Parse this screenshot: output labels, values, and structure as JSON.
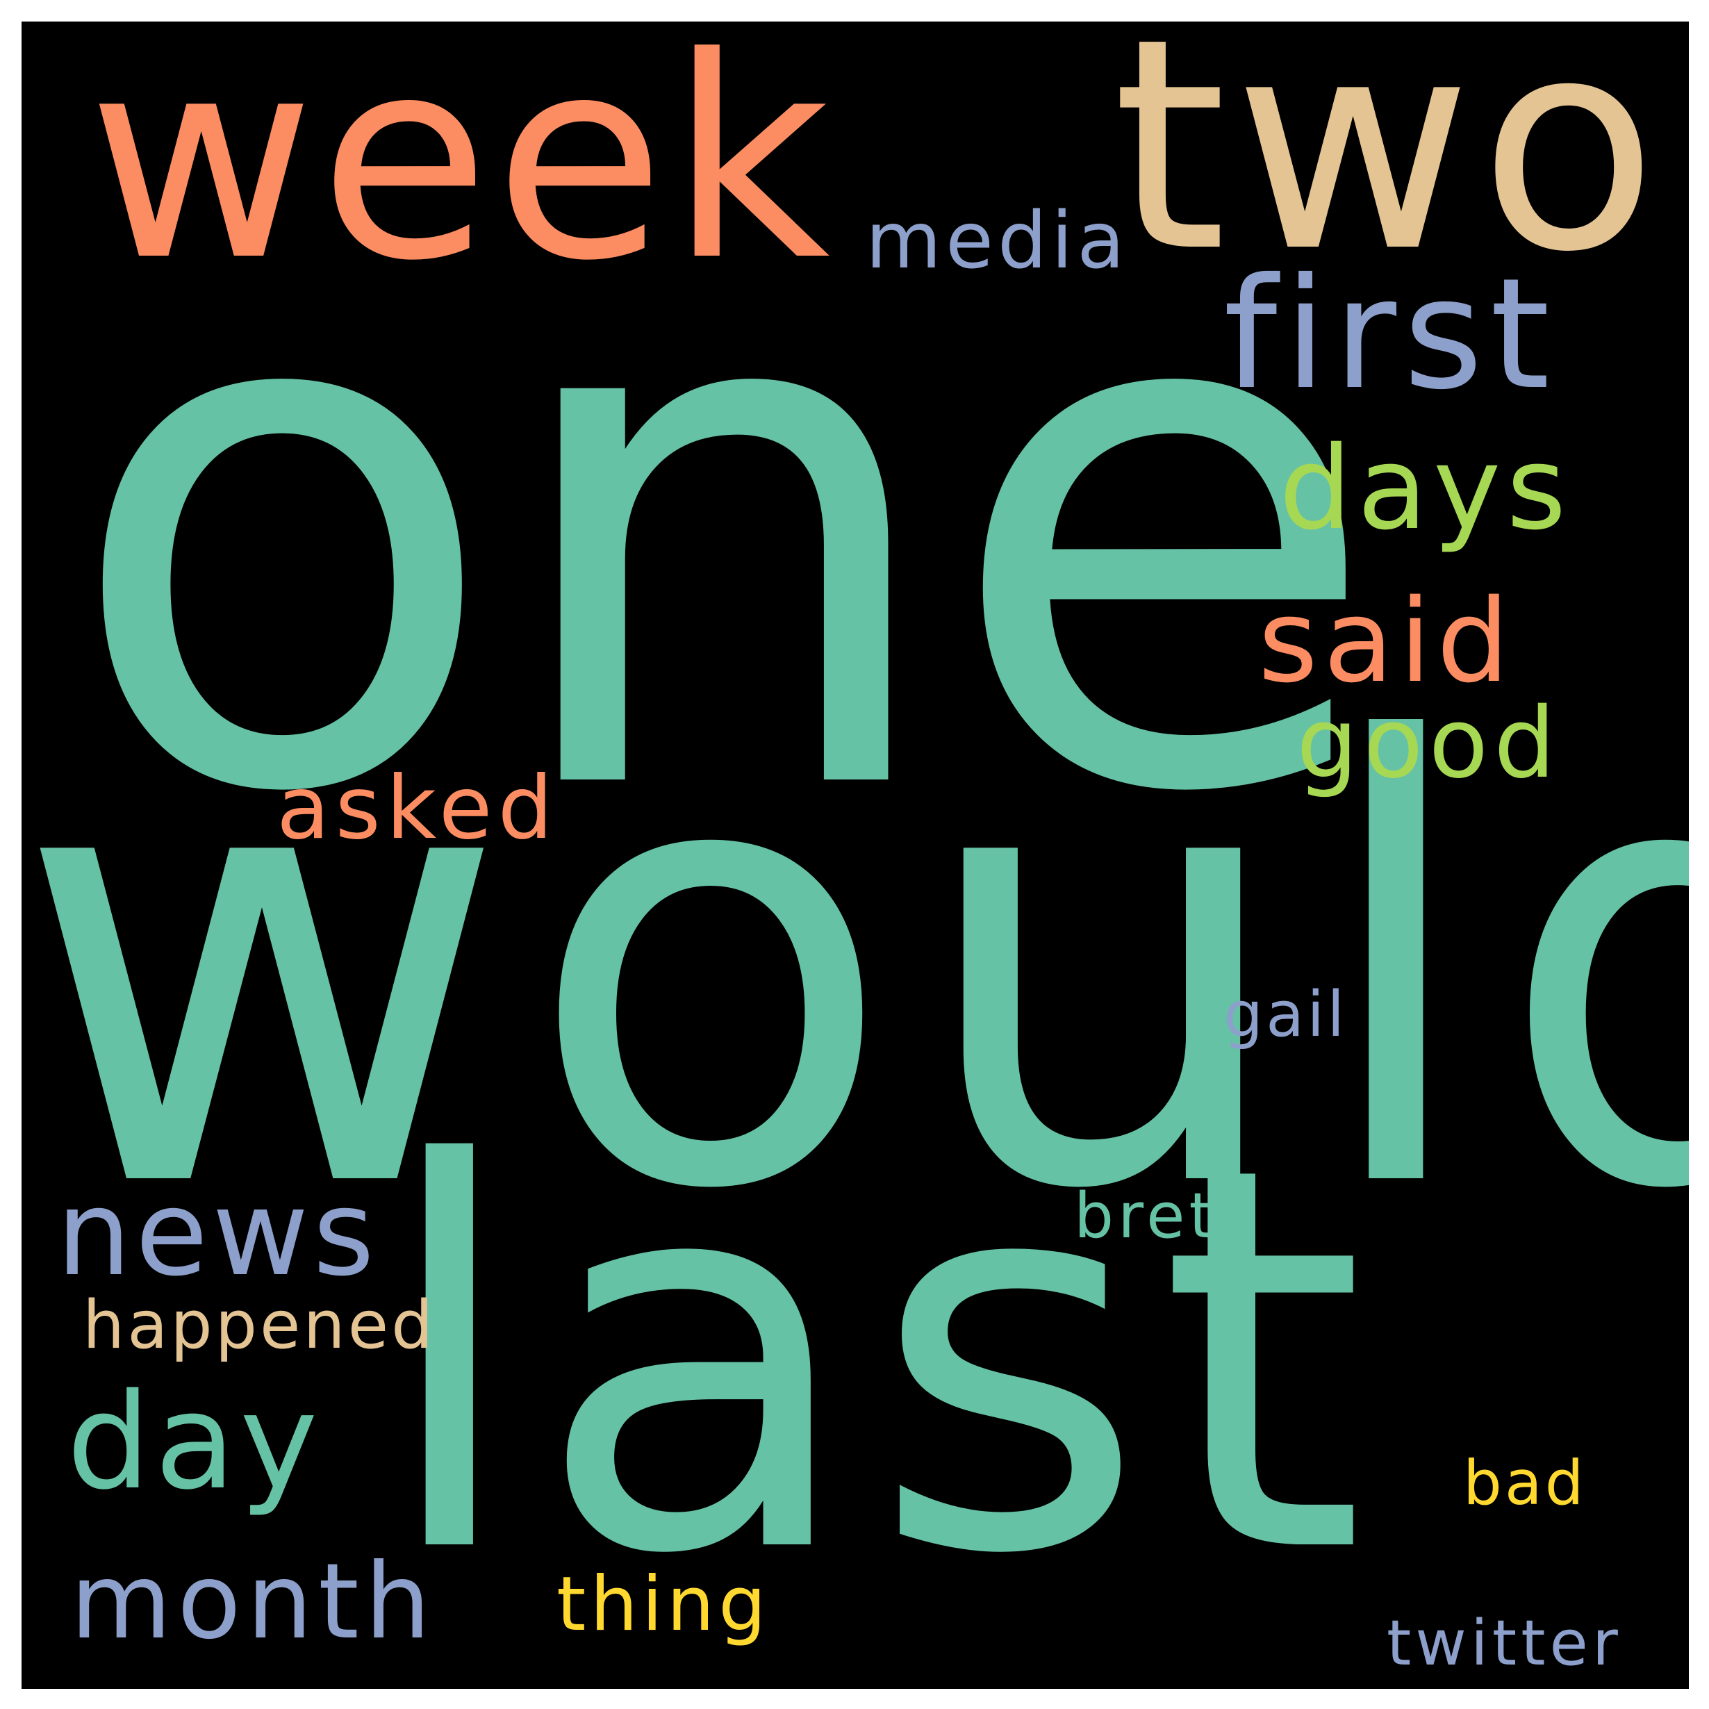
{
  "background_color": "#000000",
  "palette": {
    "teal": "#66c2a5",
    "orange": "#fc8d62",
    "lavender": "#8da0cb",
    "tan": "#e5c494",
    "lime": "#a6d854",
    "yellow": "#ffd92f"
  },
  "words": [
    {
      "id": "one",
      "text": "one",
      "color": "#66c2a5"
    },
    {
      "id": "would",
      "text": "would",
      "color": "#66c2a5"
    },
    {
      "id": "last",
      "text": "last",
      "color": "#66c2a5"
    },
    {
      "id": "two",
      "text": "two",
      "color": "#e5c494"
    },
    {
      "id": "week",
      "text": "week",
      "color": "#fc8d62"
    },
    {
      "id": "first",
      "text": "first",
      "color": "#8da0cb"
    },
    {
      "id": "media",
      "text": "media",
      "color": "#8da0cb"
    },
    {
      "id": "days",
      "text": "days",
      "color": "#a6d854"
    },
    {
      "id": "said",
      "text": "said",
      "color": "#fc8d62"
    },
    {
      "id": "good",
      "text": "good",
      "color": "#a6d854"
    },
    {
      "id": "asked",
      "text": "asked",
      "color": "#fc8d62"
    },
    {
      "id": "gail",
      "text": "gail",
      "color": "#8da0cb"
    },
    {
      "id": "news",
      "text": "news",
      "color": "#8da0cb"
    },
    {
      "id": "bret",
      "text": "bret",
      "color": "#66c2a5"
    },
    {
      "id": "happened",
      "text": "happened",
      "color": "#e5c494"
    },
    {
      "id": "day",
      "text": "day",
      "color": "#66c2a5"
    },
    {
      "id": "bad",
      "text": "bad",
      "color": "#ffd92f"
    },
    {
      "id": "month",
      "text": "month",
      "color": "#8da0cb"
    },
    {
      "id": "thing",
      "text": "thing",
      "color": "#ffd92f"
    },
    {
      "id": "twitter",
      "text": "twitter",
      "color": "#8da0cb"
    }
  ]
}
